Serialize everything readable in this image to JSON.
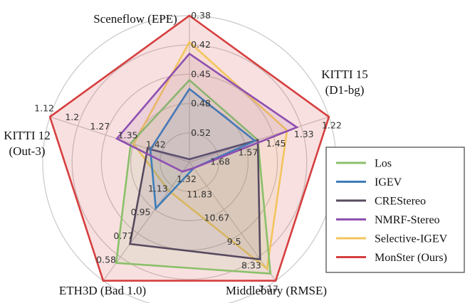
{
  "chart_data": {
    "type": "radar",
    "axes": [
      {
        "key": "sceneflow",
        "title_lines": [
          "Sceneflow (EPE)"
        ],
        "ticks": [
          "0.52",
          "0.48",
          "0.45",
          "0.42",
          "0.38"
        ]
      },
      {
        "key": "kitti15",
        "title_lines": [
          "KITTI 15",
          "(D1-bg)"
        ],
        "ticks": [
          "1.68",
          "1.57",
          "1.45",
          "1.33",
          "1.22"
        ]
      },
      {
        "key": "middlebury",
        "title_lines": [
          "Middlebury (RMSE)"
        ],
        "ticks": [
          "11.83",
          "10.67",
          "9.5",
          "8.33",
          "7.17"
        ]
      },
      {
        "key": "eth3d",
        "title_lines": [
          "ETH3D (Bad 1.0)"
        ],
        "ticks": [
          "1.13",
          "0.95",
          "0.77",
          "0.58"
        ]
      },
      {
        "key": "kitti12",
        "title_lines": [
          "KITTI 12",
          "(Out-3)"
        ],
        "ticks": [
          "1.42",
          "1.35",
          "1.27",
          "1.2",
          "1.12"
        ]
      }
    ],
    "center_tick": "1.32",
    "grid": true,
    "legend_position": "right",
    "series": [
      {
        "name": "Los",
        "color": "#8bc06a",
        "r": [
          0.56,
          0.49,
          0.94,
          0.85,
          0.42
        ]
      },
      {
        "name": "IGEV",
        "color": "#3e7db8",
        "r": [
          0.5,
          0.47,
          0.05,
          0.39,
          0.28
        ]
      },
      {
        "name": "CREStereo",
        "color": "#584a60",
        "r": [
          0.02,
          0.49,
          0.82,
          0.69,
          0.3
        ]
      },
      {
        "name": "NMRF-Stereo",
        "color": "#8e4fb0",
        "r": [
          0.74,
          0.77,
          0.05,
          0.08,
          0.52
        ]
      },
      {
        "name": "Selective-IGEV",
        "color": "#f3c45e",
        "r": [
          0.82,
          0.7,
          0.9,
          0.24,
          0.4
        ]
      },
      {
        "name": "MonSter (Ours)",
        "color": "#d63f3f",
        "r": [
          1.0,
          1.0,
          1.0,
          1.0,
          1.0
        ]
      }
    ]
  }
}
